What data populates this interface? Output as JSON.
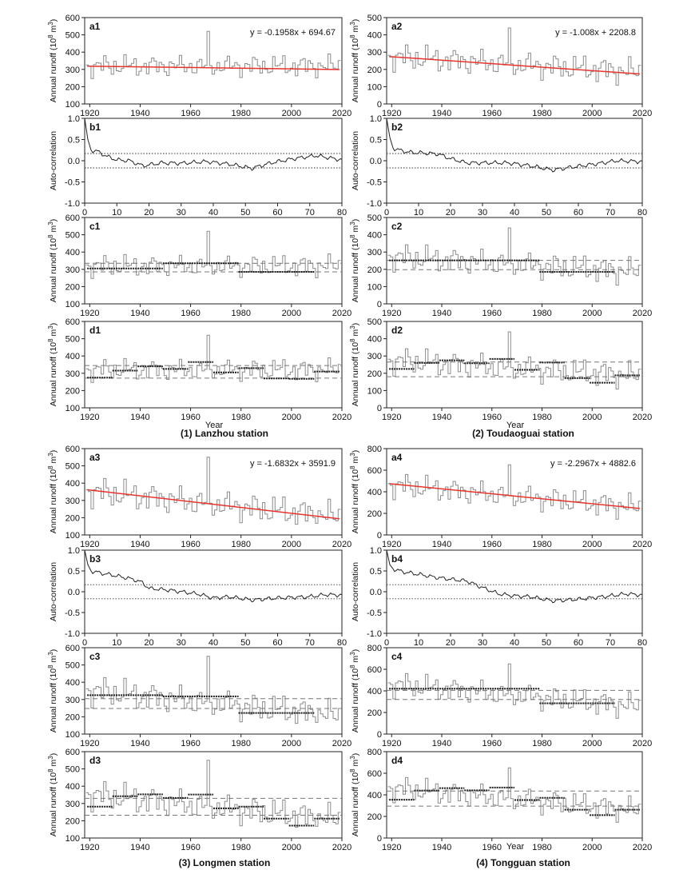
{
  "figure": {
    "station_captions": [
      "(1) Lanzhou station",
      "(2) Toudaoguai station",
      "(3) Longmen station",
      "(4) Tongguan station"
    ],
    "year_label": "Year",
    "runoff_ylabel": "Annual runoff (10",
    "runoff_ylabel_exp": "8",
    "runoff_ylabel_unit": "m",
    "runoff_ylabel_unit_exp": "3",
    "runoff_ylabel_close": ")",
    "acf_ylabel": "Auto-correlation",
    "colors": {
      "runoff": "#8c8c8c",
      "trend": "#e8322c",
      "acf": "#222222",
      "guide": "#777777",
      "segment": "#1a1a1a"
    }
  },
  "chart_data": [
    {
      "id": "a1",
      "type": "line",
      "station": 1,
      "panel_label": "a1",
      "equation": "y = -0.1958x + 694.67",
      "x_ticks": [
        "1920",
        "1940",
        "1960",
        "1980",
        "2000",
        "2020"
      ],
      "y_ticks": [
        "100",
        "200",
        "300",
        "400",
        "500",
        "600"
      ],
      "xlim": [
        1918,
        2020
      ],
      "ylim": [
        100,
        600
      ],
      "trend": {
        "slope": -0.1958,
        "intercept": 694.67
      },
      "base": 320,
      "amp": 65,
      "peak": 1967,
      "peak_value": 520,
      "drift": 0
    },
    {
      "id": "a2",
      "type": "line",
      "station": 2,
      "panel_label": "a2",
      "equation": "y = -1.008x + 2208.8",
      "x_ticks": [
        "1920",
        "1940",
        "1960",
        "1980",
        "2000",
        "2020"
      ],
      "y_ticks": [
        "0",
        "100",
        "200",
        "300",
        "400",
        "500"
      ],
      "xlim": [
        1918,
        2020
      ],
      "ylim": [
        0,
        500
      ],
      "trend": {
        "slope": -1.008,
        "intercept": 2208.8
      },
      "base": 230,
      "amp": 80,
      "peak": 1967,
      "peak_value": 440,
      "drift": -0.9
    },
    {
      "id": "b1",
      "type": "line",
      "station": 1,
      "panel_label": "b1",
      "x_ticks": [
        "0",
        "10",
        "20",
        "30",
        "40",
        "50",
        "60",
        "70",
        "80"
      ],
      "y_ticks": [
        "-1.0",
        "-0.5",
        "0.0",
        "0.5",
        "1.0"
      ],
      "xlim": [
        0,
        80
      ],
      "ylim": [
        -1,
        1
      ],
      "confidence": [
        0.17,
        -0.17
      ],
      "profile": [
        [
          0,
          1.0
        ],
        [
          1,
          0.5
        ],
        [
          2,
          0.25
        ],
        [
          4,
          0.22
        ],
        [
          7,
          0.1
        ],
        [
          10,
          0.02
        ],
        [
          14,
          0.0
        ],
        [
          18,
          -0.12
        ],
        [
          24,
          -0.05
        ],
        [
          30,
          -0.06
        ],
        [
          38,
          -0.02
        ],
        [
          45,
          -0.08
        ],
        [
          52,
          -0.18
        ],
        [
          58,
          -0.05
        ],
        [
          65,
          0.05
        ],
        [
          72,
          0.12
        ],
        [
          80,
          0.02
        ]
      ]
    },
    {
      "id": "b2",
      "type": "line",
      "station": 2,
      "panel_label": "b2",
      "x_ticks": [
        "0",
        "10",
        "20",
        "30",
        "40",
        "50",
        "60",
        "70",
        "80"
      ],
      "y_ticks": [
        "-1.0",
        "-0.5",
        "0.0",
        "0.5",
        "1.0"
      ],
      "xlim": [
        0,
        80
      ],
      "ylim": [
        -1,
        1
      ],
      "confidence": [
        0.17,
        -0.17
      ],
      "profile": [
        [
          0,
          1.0
        ],
        [
          1,
          0.55
        ],
        [
          2,
          0.3
        ],
        [
          4,
          0.25
        ],
        [
          7,
          0.2
        ],
        [
          12,
          0.18
        ],
        [
          16,
          0.16
        ],
        [
          20,
          0.05
        ],
        [
          25,
          -0.05
        ],
        [
          30,
          -0.05
        ],
        [
          38,
          -0.05
        ],
        [
          45,
          -0.12
        ],
        [
          52,
          -0.22
        ],
        [
          58,
          -0.15
        ],
        [
          65,
          -0.08
        ],
        [
          72,
          0.0
        ],
        [
          80,
          -0.02
        ]
      ]
    },
    {
      "id": "c1",
      "type": "line",
      "station": 1,
      "panel_label": "c1",
      "x_ticks": [
        "1920",
        "1940",
        "1960",
        "1980",
        "2000",
        "2020"
      ],
      "y_ticks": [
        "100",
        "200",
        "300",
        "400",
        "500",
        "600"
      ],
      "xlim": [
        1918,
        2020
      ],
      "ylim": [
        100,
        600
      ],
      "guides": [
        335,
        285
      ],
      "segments": [
        [
          1919,
          1949,
          305
        ],
        [
          1949,
          1979,
          335
        ],
        [
          1979,
          2009,
          285
        ]
      ],
      "base": 320,
      "amp": 65,
      "peak": 1967,
      "peak_value": 520,
      "drift": 0
    },
    {
      "id": "c2",
      "type": "line",
      "station": 2,
      "panel_label": "c2",
      "x_ticks": [
        "1920",
        "1940",
        "1960",
        "1980",
        "2000",
        "2020"
      ],
      "y_ticks": [
        "0",
        "100",
        "200",
        "300",
        "400",
        "500"
      ],
      "xlim": [
        1918,
        2020
      ],
      "ylim": [
        0,
        500
      ],
      "guides": [
        252,
        198
      ],
      "segments": [
        [
          1919,
          1979,
          252
        ],
        [
          1979,
          2009,
          185
        ]
      ],
      "base": 230,
      "amp": 80,
      "peak": 1967,
      "peak_value": 440,
      "drift": -0.9
    },
    {
      "id": "d1",
      "type": "line",
      "station": 1,
      "panel_label": "d1",
      "x_ticks": [
        "1920",
        "1940",
        "1960",
        "1980",
        "2000",
        "2020"
      ],
      "y_ticks": [
        "100",
        "200",
        "300",
        "400",
        "500",
        "600"
      ],
      "xlim": [
        1918,
        2020
      ],
      "ylim": [
        100,
        600
      ],
      "guides": [
        345,
        272
      ],
      "segments": [
        [
          1919,
          1929,
          275
        ],
        [
          1929,
          1939,
          315
        ],
        [
          1939,
          1949,
          340
        ],
        [
          1949,
          1959,
          325
        ],
        [
          1959,
          1969,
          365
        ],
        [
          1969,
          1979,
          305
        ],
        [
          1979,
          1989,
          330
        ],
        [
          1989,
          1999,
          270
        ],
        [
          1999,
          2009,
          268
        ],
        [
          2009,
          2019,
          310
        ]
      ],
      "base": 320,
      "amp": 65,
      "peak": 1967,
      "peak_value": 520,
      "drift": 0
    },
    {
      "id": "d2",
      "type": "line",
      "station": 2,
      "panel_label": "d2",
      "x_ticks": [
        "1920",
        "1940",
        "1960",
        "1980",
        "2000",
        "2020"
      ],
      "y_ticks": [
        "0",
        "100",
        "200",
        "300",
        "400",
        "500"
      ],
      "xlim": [
        1918,
        2020
      ],
      "ylim": [
        0,
        500
      ],
      "guides": [
        265,
        180
      ],
      "segments": [
        [
          1919,
          1929,
          225
        ],
        [
          1929,
          1939,
          260
        ],
        [
          1939,
          1949,
          275
        ],
        [
          1949,
          1959,
          258
        ],
        [
          1959,
          1969,
          283
        ],
        [
          1969,
          1979,
          220
        ],
        [
          1979,
          1989,
          262
        ],
        [
          1989,
          1999,
          172
        ],
        [
          1999,
          2009,
          145
        ],
        [
          2009,
          2019,
          188
        ]
      ],
      "base": 230,
      "amp": 80,
      "peak": 1967,
      "peak_value": 440,
      "drift": -0.9
    },
    {
      "id": "a3",
      "type": "line",
      "station": 3,
      "panel_label": "a3",
      "equation": "y = -1.6832x + 3591.9",
      "x_ticks": [
        "1920",
        "1940",
        "1960",
        "1980",
        "2000",
        "2020"
      ],
      "y_ticks": [
        "100",
        "200",
        "300",
        "400",
        "500",
        "600"
      ],
      "xlim": [
        1918,
        2020
      ],
      "ylim": [
        100,
        600
      ],
      "trend": {
        "slope": -1.6832,
        "intercept": 3591.9
      },
      "base": 280,
      "amp": 90,
      "peak": 1967,
      "peak_value": 550,
      "drift": -1.5
    },
    {
      "id": "a4",
      "type": "line",
      "station": 4,
      "panel_label": "a4",
      "equation": "y = -2.2967x + 4882.6",
      "x_ticks": [
        "1920",
        "1940",
        "1960",
        "1980",
        "2000",
        "2020"
      ],
      "y_ticks": [
        "0",
        "200",
        "400",
        "600",
        "800"
      ],
      "xlim": [
        1918,
        2020
      ],
      "ylim": [
        0,
        800
      ],
      "trend": {
        "slope": -2.2967,
        "intercept": 4882.6
      },
      "base": 360,
      "amp": 120,
      "peak": 1967,
      "peak_value": 650,
      "drift": -2.1
    },
    {
      "id": "b3",
      "type": "line",
      "station": 3,
      "panel_label": "b3",
      "x_ticks": [
        "0",
        "10",
        "20",
        "30",
        "40",
        "50",
        "60",
        "70",
        "80"
      ],
      "y_ticks": [
        "-1.0",
        "-0.5",
        "0.0",
        "0.5",
        "1.0"
      ],
      "xlim": [
        0,
        80
      ],
      "ylim": [
        -1,
        1
      ],
      "confidence": [
        0.17,
        -0.17
      ],
      "profile": [
        [
          0,
          1.0
        ],
        [
          1,
          0.65
        ],
        [
          2,
          0.5
        ],
        [
          5,
          0.45
        ],
        [
          10,
          0.38
        ],
        [
          15,
          0.3
        ],
        [
          18,
          0.22
        ],
        [
          20,
          0.08
        ],
        [
          25,
          0.05
        ],
        [
          30,
          0.0
        ],
        [
          35,
          -0.05
        ],
        [
          40,
          -0.15
        ],
        [
          45,
          -0.12
        ],
        [
          52,
          -0.2
        ],
        [
          60,
          -0.15
        ],
        [
          70,
          -0.12
        ],
        [
          75,
          -0.07
        ],
        [
          80,
          -0.08
        ]
      ]
    },
    {
      "id": "b4",
      "type": "line",
      "station": 4,
      "panel_label": "b4",
      "x_ticks": [
        "0",
        "10",
        "20",
        "30",
        "40",
        "50",
        "60",
        "70",
        "80"
      ],
      "y_ticks": [
        "-1.0",
        "-0.5",
        "0.0",
        "0.5",
        "1.0"
      ],
      "xlim": [
        0,
        80
      ],
      "ylim": [
        -1,
        1
      ],
      "confidence": [
        0.17,
        -0.17
      ],
      "profile": [
        [
          0,
          1.0
        ],
        [
          1,
          0.65
        ],
        [
          2,
          0.55
        ],
        [
          5,
          0.48
        ],
        [
          10,
          0.42
        ],
        [
          15,
          0.35
        ],
        [
          20,
          0.3
        ],
        [
          25,
          0.26
        ],
        [
          30,
          0.1
        ],
        [
          35,
          -0.05
        ],
        [
          40,
          -0.1
        ],
        [
          45,
          -0.12
        ],
        [
          52,
          -0.22
        ],
        [
          60,
          -0.18
        ],
        [
          70,
          -0.1
        ],
        [
          75,
          -0.05
        ],
        [
          80,
          -0.08
        ]
      ]
    },
    {
      "id": "c3",
      "type": "line",
      "station": 3,
      "panel_label": "c3",
      "x_ticks": [
        "1920",
        "1940",
        "1960",
        "1980",
        "2000",
        "2020"
      ],
      "y_ticks": [
        "100",
        "200",
        "300",
        "400",
        "500",
        "600"
      ],
      "xlim": [
        1918,
        2020
      ],
      "ylim": [
        100,
        600
      ],
      "guides": [
        305,
        248
      ],
      "segments": [
        [
          1919,
          1949,
          325
        ],
        [
          1949,
          1979,
          318
        ],
        [
          1979,
          2009,
          222
        ]
      ],
      "base": 280,
      "amp": 90,
      "peak": 1967,
      "peak_value": 550,
      "drift": -1.5
    },
    {
      "id": "c4",
      "type": "line",
      "station": 4,
      "panel_label": "c4",
      "x_ticks": [
        "1920",
        "1940",
        "1960",
        "1980",
        "2000",
        "2020"
      ],
      "y_ticks": [
        "0",
        "200",
        "400",
        "600",
        "800"
      ],
      "xlim": [
        1918,
        2020
      ],
      "ylim": [
        0,
        800
      ],
      "guides": [
        405,
        320
      ],
      "segments": [
        [
          1919,
          1979,
          420
        ],
        [
          1979,
          2009,
          285
        ]
      ],
      "base": 360,
      "amp": 120,
      "peak": 1967,
      "peak_value": 650,
      "drift": -2.1
    },
    {
      "id": "d3",
      "type": "line",
      "station": 3,
      "panel_label": "d3",
      "x_ticks": [
        "1920",
        "1940",
        "1960",
        "1980",
        "2000",
        "2020"
      ],
      "y_ticks": [
        "100",
        "200",
        "300",
        "400",
        "500",
        "600"
      ],
      "xlim": [
        1918,
        2020
      ],
      "ylim": [
        100,
        600
      ],
      "guides": [
        330,
        232
      ],
      "segments": [
        [
          1919,
          1929,
          282
        ],
        [
          1929,
          1939,
          342
        ],
        [
          1939,
          1949,
          353
        ],
        [
          1949,
          1959,
          332
        ],
        [
          1959,
          1969,
          352
        ],
        [
          1969,
          1979,
          272
        ],
        [
          1979,
          1989,
          282
        ],
        [
          1989,
          1999,
          212
        ],
        [
          1999,
          2009,
          172
        ],
        [
          2009,
          2019,
          212
        ]
      ],
      "base": 280,
      "amp": 90,
      "peak": 1967,
      "peak_value": 550,
      "drift": -1.5
    },
    {
      "id": "d4",
      "type": "line",
      "station": 4,
      "panel_label": "d4",
      "x_ticks": [
        "1920",
        "1940",
        "1960",
        "1980",
        "2000",
        "2020"
      ],
      "y_ticks": [
        "0",
        "200",
        "400",
        "600",
        "800"
      ],
      "xlim": [
        1918,
        2020
      ],
      "ylim": [
        0,
        800
      ],
      "guides": [
        435,
        295
      ],
      "segments": [
        [
          1919,
          1929,
          355
        ],
        [
          1929,
          1939,
          440
        ],
        [
          1939,
          1949,
          462
        ],
        [
          1949,
          1959,
          442
        ],
        [
          1959,
          1969,
          468
        ],
        [
          1969,
          1979,
          352
        ],
        [
          1979,
          1989,
          372
        ],
        [
          1989,
          1999,
          262
        ],
        [
          1999,
          2009,
          212
        ],
        [
          2009,
          2019,
          262
        ]
      ],
      "base": 360,
      "amp": 120,
      "peak": 1967,
      "peak_value": 650,
      "drift": -2.1
    }
  ]
}
